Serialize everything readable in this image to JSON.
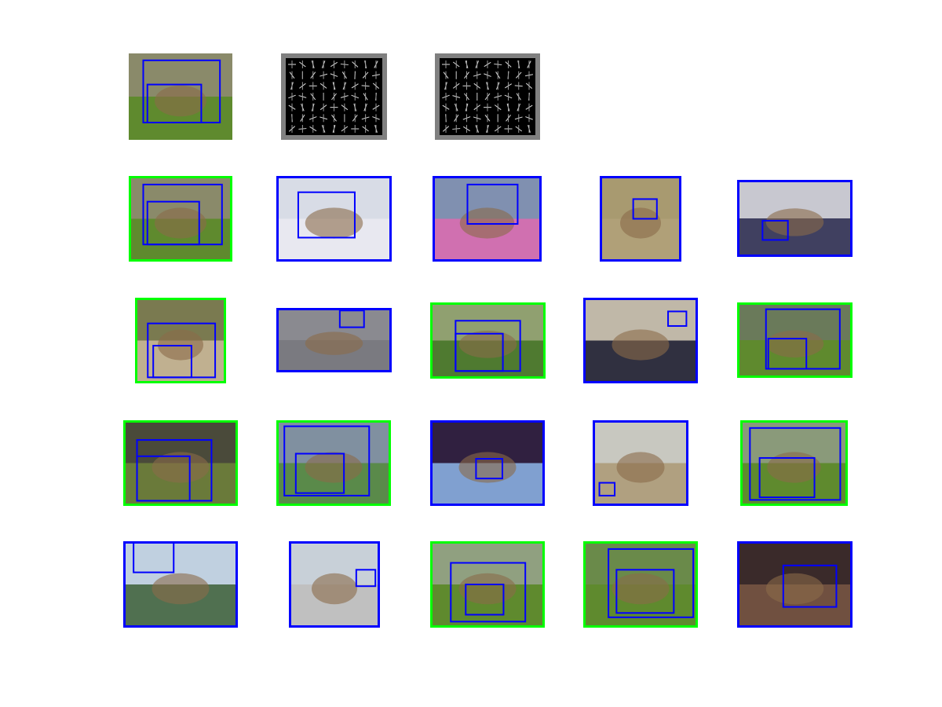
{
  "grid": {
    "rows": [
      [
        {
          "frame": null
        },
        {
          "frame": null
        },
        {
          "frame": null
        }
      ],
      [
        {
          "frame": "#00ff00"
        },
        {
          "frame": "#0000ff"
        },
        {
          "frame": "#0000ff"
        },
        {
          "frame": "#0000ff"
        },
        {
          "frame": "#0000ff"
        }
      ],
      [
        {
          "frame": "#00ff00"
        },
        {
          "frame": "#0000ff"
        },
        {
          "frame": "#00ff00"
        },
        {
          "frame": "#0000ff"
        },
        {
          "frame": "#00ff00"
        }
      ],
      [
        {
          "frame": "#00ff00"
        },
        {
          "frame": "#00ff00"
        },
        {
          "frame": "#0000ff"
        },
        {
          "frame": "#0000ff"
        },
        {
          "frame": "#00ff00"
        }
      ],
      [
        {
          "frame": "#0000ff"
        },
        {
          "frame": "#0000ff"
        },
        {
          "frame": "#00ff00"
        },
        {
          "frame": "#00ff00"
        },
        {
          "frame": "#0000ff"
        }
      ]
    ]
  }
}
